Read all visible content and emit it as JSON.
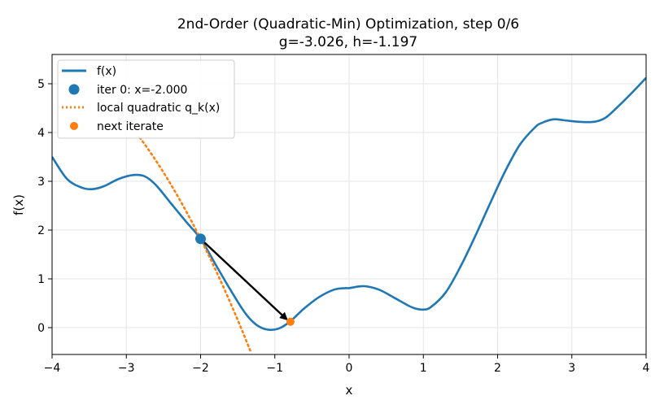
{
  "chart_data": {
    "type": "line",
    "title_line1": "2nd-Order (Quadratic-Min) Optimization, step 0/6",
    "title_line2": "g=-3.026, h=-1.197",
    "xlabel": "x",
    "ylabel": "f(x)",
    "xlim": [
      -4,
      4
    ],
    "ylim": [
      -0.55,
      5.6
    ],
    "xticks": [
      -4,
      -3,
      -2,
      -1,
      0,
      1,
      2,
      3,
      4
    ],
    "xtick_labels": [
      "−4",
      "−3",
      "−2",
      "−1",
      "0",
      "1",
      "2",
      "3",
      "4"
    ],
    "yticks": [
      0,
      1,
      2,
      3,
      4,
      5
    ],
    "ytick_labels": [
      "0",
      "1",
      "2",
      "3",
      "4",
      "5"
    ],
    "grid": true,
    "legend_position": "top-left",
    "colors": {
      "function": "#1f77b4",
      "quadratic": "#ff7f0e",
      "arrow": "#000000",
      "grid": "#e6e6e6"
    },
    "series": [
      {
        "name": "f(x)",
        "kind": "line",
        "x": [
          -4.0,
          -3.8,
          -3.6,
          -3.45,
          -3.3,
          -3.1,
          -2.9,
          -2.75,
          -2.6,
          -2.4,
          -2.2,
          -2.0,
          -1.8,
          -1.6,
          -1.4,
          -1.25,
          -1.1,
          -0.95,
          -0.8,
          -0.6,
          -0.4,
          -0.2,
          -0.05,
          0.0,
          0.2,
          0.4,
          0.6,
          0.8,
          0.9,
          1.0,
          1.1,
          1.3,
          1.5,
          1.7,
          1.9,
          2.1,
          2.3,
          2.5,
          2.6,
          2.75,
          2.9,
          3.1,
          3.3,
          3.45,
          3.6,
          3.8,
          4.0
        ],
        "y": [
          3.5,
          3.05,
          2.87,
          2.84,
          2.9,
          3.05,
          3.13,
          3.1,
          2.92,
          2.55,
          2.18,
          1.82,
          1.3,
          0.78,
          0.3,
          0.06,
          -0.04,
          -0.02,
          0.12,
          0.4,
          0.63,
          0.78,
          0.81,
          0.81,
          0.85,
          0.78,
          0.62,
          0.45,
          0.39,
          0.37,
          0.42,
          0.72,
          1.25,
          1.88,
          2.55,
          3.2,
          3.75,
          4.1,
          4.2,
          4.27,
          4.25,
          4.22,
          4.22,
          4.3,
          4.5,
          4.8,
          5.12
        ]
      },
      {
        "name": "local quadratic q_k(x)",
        "kind": "dotted-line",
        "center": -2.0,
        "f0": 1.82,
        "g": -3.026,
        "h": -1.197,
        "x_range": [
          -2.82,
          -1.32
        ]
      }
    ],
    "points": [
      {
        "name": "iter 0: x=-2.000",
        "x": -2.0,
        "y": 1.82,
        "color": "#1f77b4"
      },
      {
        "name": "next iterate",
        "x": -0.79,
        "y": 0.12,
        "color": "#ff7f0e"
      }
    ],
    "arrow": {
      "from": [
        -2.0,
        1.82
      ],
      "to": [
        -0.84,
        0.17
      ]
    },
    "legend": [
      {
        "label": "f(x)",
        "marker": "line",
        "color": "#1f77b4"
      },
      {
        "label": "iter 0: x=-2.000",
        "marker": "big-dot",
        "color": "#1f77b4"
      },
      {
        "label": "local quadratic q_k(x)",
        "marker": "dotted",
        "color": "#ff7f0e"
      },
      {
        "label": "next iterate",
        "marker": "small-dot",
        "color": "#ff7f0e"
      }
    ]
  }
}
